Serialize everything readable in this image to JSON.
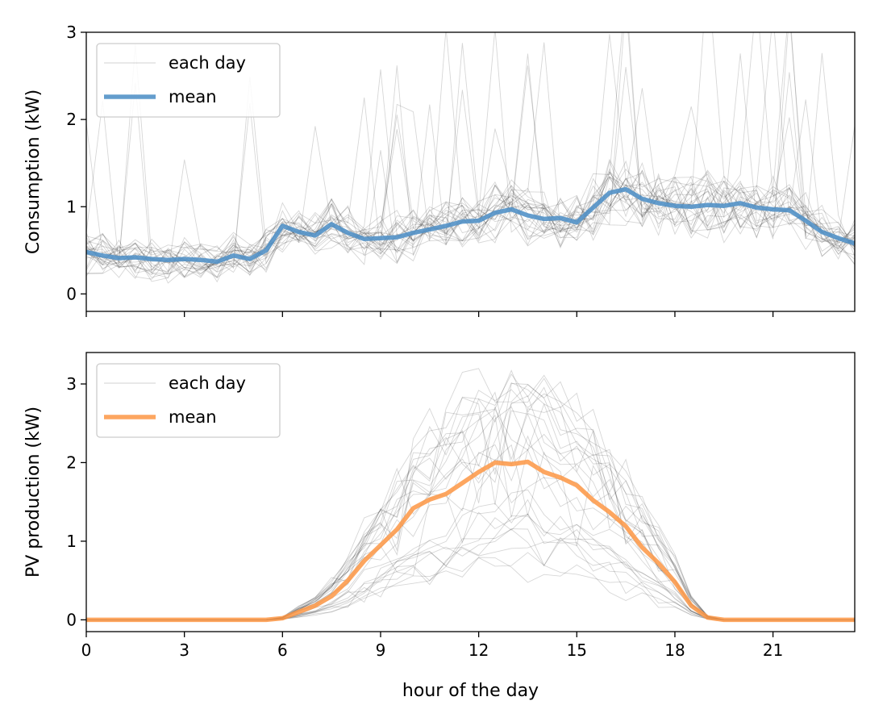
{
  "colors": {
    "background": "#ffffff",
    "day_lines": "#000000",
    "consumption_mean": "#4f8fc6",
    "pv_mean": "#fd9a4a",
    "legend_border": "#cccccc"
  },
  "chart_data": [
    {
      "type": "line",
      "xlabel": "",
      "ylabel": "Consumption (kW)",
      "xlim": [
        0,
        23.5
      ],
      "ylim": [
        -0.2,
        3
      ],
      "xticks": [
        0,
        3,
        6,
        9,
        12,
        15,
        18,
        21
      ],
      "yticks": [
        0,
        1,
        2,
        3
      ],
      "show_xtick_labels": false,
      "legend": {
        "position": "upper-left",
        "entries": [
          "each day",
          "mean"
        ]
      },
      "mean_series": {
        "name": "mean",
        "x": [
          0,
          0.5,
          1,
          1.5,
          2,
          2.5,
          3,
          3.5,
          4,
          4.5,
          5,
          5.5,
          6,
          6.5,
          7,
          7.5,
          8,
          8.5,
          9,
          9.5,
          10,
          10.5,
          11,
          11.5,
          12,
          12.5,
          13,
          13.5,
          14,
          14.5,
          15,
          15.5,
          16,
          16.5,
          17,
          17.5,
          18,
          18.5,
          19,
          19.5,
          20,
          20.5,
          21,
          21.5,
          22,
          22.5,
          23,
          23.5
        ],
        "y": [
          0.48,
          0.44,
          0.41,
          0.42,
          0.4,
          0.39,
          0.4,
          0.39,
          0.37,
          0.44,
          0.4,
          0.5,
          0.78,
          0.71,
          0.67,
          0.8,
          0.7,
          0.63,
          0.64,
          0.65,
          0.7,
          0.74,
          0.78,
          0.83,
          0.84,
          0.93,
          0.97,
          0.9,
          0.86,
          0.87,
          0.82,
          0.99,
          1.16,
          1.2,
          1.09,
          1.04,
          1.01,
          1.0,
          1.02,
          1.01,
          1.04,
          0.99,
          0.97,
          0.96,
          0.84,
          0.71,
          0.64,
          0.58
        ]
      }
    },
    {
      "type": "line",
      "xlabel": "hour of the day",
      "ylabel": "PV production (kW)",
      "xlim": [
        0,
        23.5
      ],
      "ylim": [
        -0.15,
        3.4
      ],
      "xticks": [
        0,
        3,
        6,
        9,
        12,
        15,
        18,
        21
      ],
      "yticks": [
        0,
        1,
        2,
        3
      ],
      "show_xtick_labels": true,
      "legend": {
        "position": "upper-left",
        "entries": [
          "each day",
          "mean"
        ]
      },
      "mean_series": {
        "name": "mean",
        "x": [
          0,
          0.5,
          1,
          1.5,
          2,
          2.5,
          3,
          3.5,
          4,
          4.5,
          5,
          5.5,
          6,
          6.5,
          7,
          7.5,
          8,
          8.5,
          9,
          9.5,
          10,
          10.5,
          11,
          11.5,
          12,
          12.5,
          13,
          13.5,
          14,
          14.5,
          15,
          15.5,
          16,
          16.5,
          17,
          17.5,
          18,
          18.5,
          19,
          19.5,
          20,
          20.5,
          21,
          21.5,
          22,
          22.5,
          23,
          23.5
        ],
        "y": [
          0,
          0,
          0,
          0,
          0,
          0,
          0,
          0,
          0,
          0,
          0,
          0,
          0.02,
          0.1,
          0.18,
          0.3,
          0.5,
          0.75,
          0.95,
          1.15,
          1.42,
          1.53,
          1.6,
          1.74,
          1.88,
          2.0,
          1.98,
          2.01,
          1.88,
          1.81,
          1.71,
          1.52,
          1.37,
          1.19,
          0.92,
          0.72,
          0.48,
          0.18,
          0.03,
          0,
          0,
          0,
          0,
          0,
          0,
          0,
          0,
          0
        ]
      }
    }
  ]
}
